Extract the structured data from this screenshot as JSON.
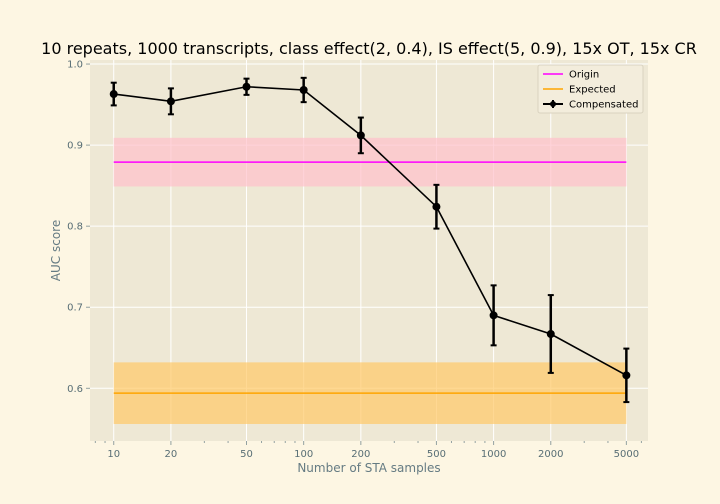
{
  "chart_data": {
    "type": "line",
    "title": "10 repeats, 1000 transcripts, class effect(2, 0.4), IS effect(5, 0.9), 15x OT, 15x CR",
    "xlabel": "Number of STA samples",
    "ylabel": "AUC score",
    "xscale": "log",
    "xlim": [
      7.5,
      6500
    ],
    "ylim": [
      0.535,
      1.005
    ],
    "x_ticks": [
      10,
      20,
      50,
      100,
      200,
      500,
      1000,
      2000,
      5000
    ],
    "x_tick_labels": [
      "10",
      "20",
      "50",
      "100",
      "200",
      "500",
      "1000",
      "2000",
      "5000"
    ],
    "y_ticks": [
      0.6,
      0.7,
      0.8,
      0.9,
      1.0
    ],
    "y_tick_labels": [
      "0.6",
      "0.7",
      "0.8",
      "0.9",
      "1.0"
    ],
    "grid": true,
    "legend_position": "top-right",
    "series": [
      {
        "name": "Origin",
        "kind": "hline",
        "color": "#ff00ff",
        "band_color": "#ffc0cb",
        "x_range": [
          10,
          5000
        ],
        "value": 0.879,
        "band": [
          0.849,
          0.909
        ]
      },
      {
        "name": "Expected",
        "kind": "hline",
        "color": "#ffa500",
        "band_color": "#ffc966",
        "x_range": [
          10,
          5000
        ],
        "value": 0.594,
        "band": [
          0.556,
          0.632
        ]
      },
      {
        "name": "Compensated",
        "kind": "errorbar",
        "color": "#000000",
        "x": [
          10,
          20,
          50,
          100,
          200,
          500,
          1000,
          2000,
          5000
        ],
        "y": [
          0.963,
          0.954,
          0.972,
          0.968,
          0.912,
          0.824,
          0.69,
          0.667,
          0.616
        ],
        "yerr": [
          0.014,
          0.016,
          0.01,
          0.015,
          0.022,
          0.027,
          0.037,
          0.048,
          0.033
        ]
      }
    ]
  }
}
